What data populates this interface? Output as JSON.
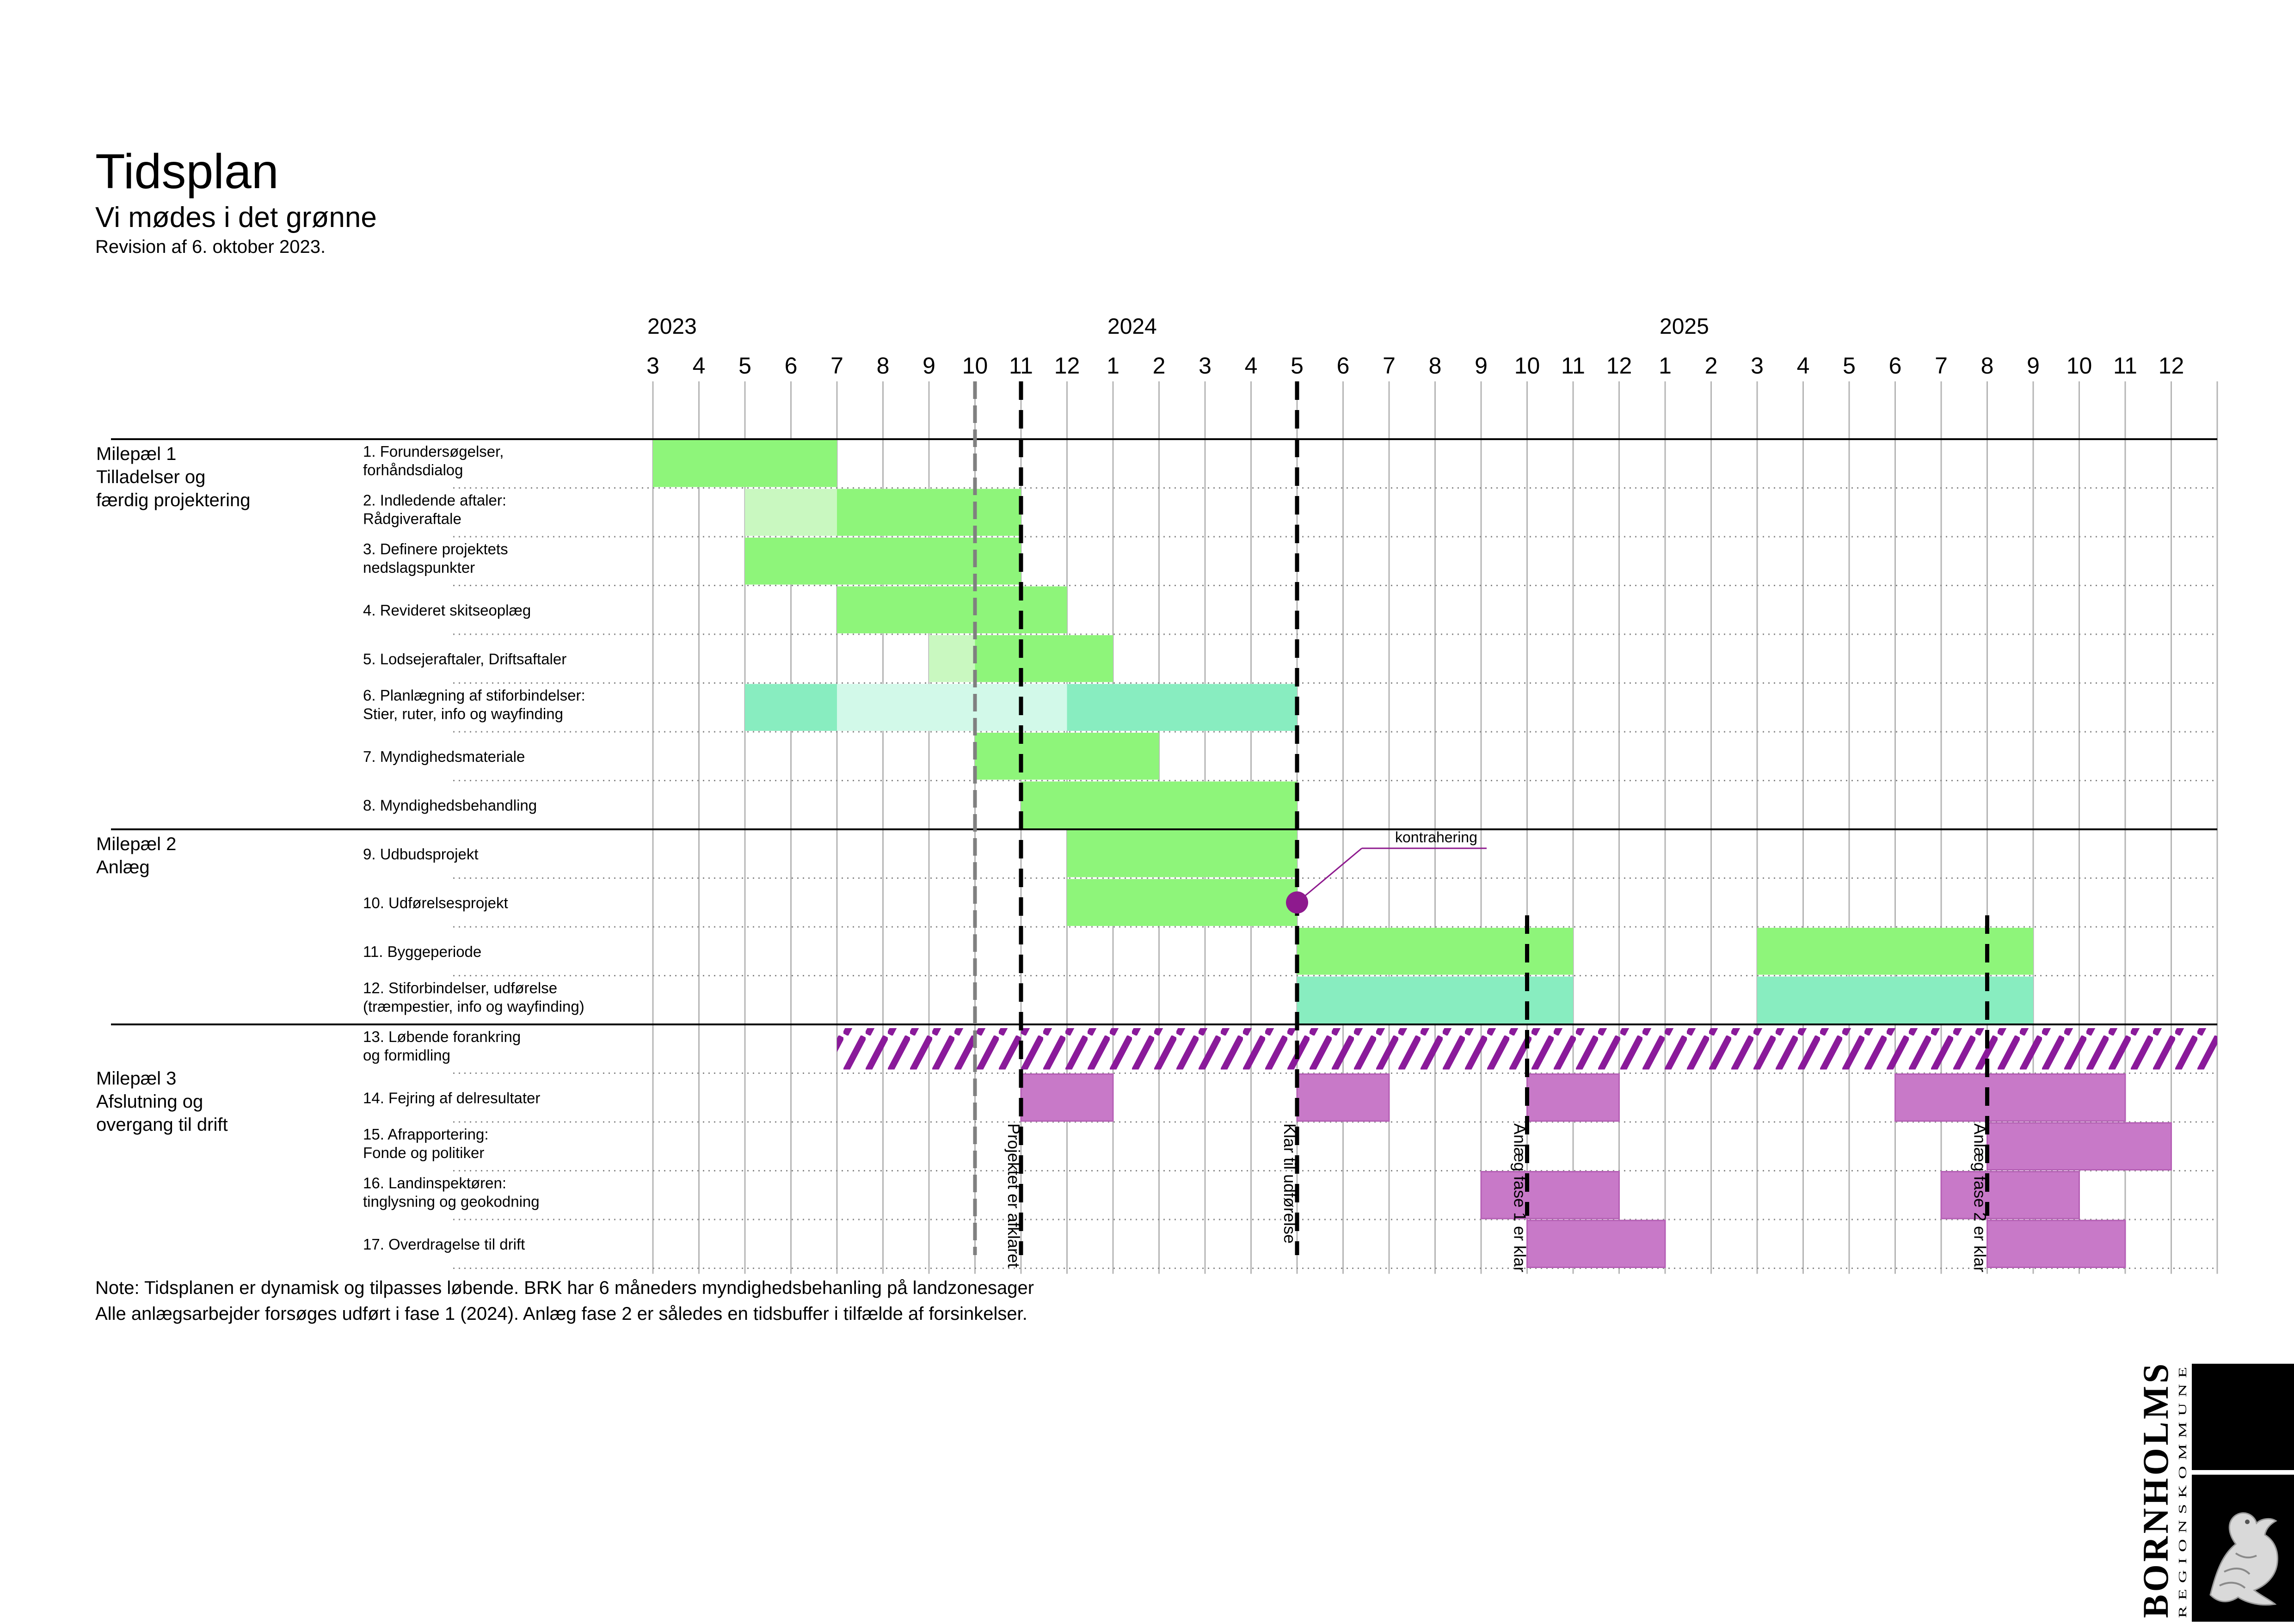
{
  "header": {
    "title": "Tidsplan",
    "subtitle": "Vi mødes i det grønne",
    "revision": "Revision af 6. oktober 2023."
  },
  "note": {
    "line1": "Note: Tidsplanen er dynamisk og tilpasses løbende. BRK har 6 måneders myndighedsbehanling på landzonesager",
    "line2": "Alle anlægsarbejder forsøges udført i fase 1 (2024). Anlæg fase 2 er således en tidsbuffer i tilfælde af forsinkelser."
  },
  "logo": {
    "name": "BORNHOLMS",
    "sub": "REGIONSKOMMUNE",
    "emblem": "dragon-icon"
  },
  "colors": {
    "green": "#8ef57a",
    "light_green": "#c9f8c0",
    "teal": "#88edc0",
    "light_teal": "#d2f9e9",
    "purple": "#c879c8",
    "purple_dark": "#8e1a8e",
    "hatch": "#8a1a9a"
  },
  "chart_data": {
    "type": "gantt",
    "months": [
      {
        "year": 2023,
        "month": 3
      },
      {
        "year": 2023,
        "month": 4
      },
      {
        "year": 2023,
        "month": 5
      },
      {
        "year": 2023,
        "month": 6
      },
      {
        "year": 2023,
        "month": 7
      },
      {
        "year": 2023,
        "month": 8
      },
      {
        "year": 2023,
        "month": 9
      },
      {
        "year": 2023,
        "month": 10
      },
      {
        "year": 2023,
        "month": 11
      },
      {
        "year": 2023,
        "month": 12
      },
      {
        "year": 2024,
        "month": 1
      },
      {
        "year": 2024,
        "month": 2
      },
      {
        "year": 2024,
        "month": 3
      },
      {
        "year": 2024,
        "month": 4
      },
      {
        "year": 2024,
        "month": 5
      },
      {
        "year": 2024,
        "month": 6
      },
      {
        "year": 2024,
        "month": 7
      },
      {
        "year": 2024,
        "month": 8
      },
      {
        "year": 2024,
        "month": 9
      },
      {
        "year": 2024,
        "month": 10
      },
      {
        "year": 2024,
        "month": 11
      },
      {
        "year": 2024,
        "month": 12
      },
      {
        "year": 2025,
        "month": 1
      },
      {
        "year": 2025,
        "month": 2
      },
      {
        "year": 2025,
        "month": 3
      },
      {
        "year": 2025,
        "month": 4
      },
      {
        "year": 2025,
        "month": 5
      },
      {
        "year": 2025,
        "month": 6
      },
      {
        "year": 2025,
        "month": 7
      },
      {
        "year": 2025,
        "month": 8
      },
      {
        "year": 2025,
        "month": 9
      },
      {
        "year": 2025,
        "month": 10
      },
      {
        "year": 2025,
        "month": 11
      },
      {
        "year": 2025,
        "month": 12
      }
    ],
    "years": [
      {
        "label": "2023",
        "start": "2023-03"
      },
      {
        "label": "2024",
        "start": "2024-01"
      },
      {
        "label": "2025",
        "start": "2025-01"
      }
    ],
    "milestones": [
      {
        "lines": [
          "Milepæl 1",
          "Tilladelser og",
          "færdig projektering"
        ],
        "first_row": 0
      },
      {
        "lines": [
          "Milepæl 2",
          "Anlæg"
        ],
        "first_row": 8
      },
      {
        "lines": [
          "Milepæl 3",
          "Afslutning og",
          "overgang til drift"
        ],
        "first_row": 12
      }
    ],
    "tasks": [
      {
        "lines": [
          "1.  Forundersøgelser,",
          "     forhåndsdialog"
        ],
        "bars": [
          {
            "start": "2023-03",
            "end": "2023-06",
            "color": "green"
          }
        ]
      },
      {
        "lines": [
          "2.  Indledende aftaler:",
          "     Rådgiveraftale"
        ],
        "bars": [
          {
            "start": "2023-05",
            "end": "2023-06",
            "color": "light_green"
          },
          {
            "start": "2023-07",
            "end": "2023-10",
            "color": "green"
          }
        ]
      },
      {
        "lines": [
          "3.  Definere projektets",
          "     nedslagspunkter"
        ],
        "bars": [
          {
            "start": "2023-05",
            "end": "2023-10",
            "color": "green"
          }
        ]
      },
      {
        "lines": [
          "4. Revideret skitseoplæg"
        ],
        "bars": [
          {
            "start": "2023-07",
            "end": "2023-11",
            "color": "green"
          }
        ]
      },
      {
        "lines": [
          "5.  Lodsejeraftaler, Driftsaftaler"
        ],
        "bars": [
          {
            "start": "2023-09",
            "end": "2023-10",
            "color": "light_green"
          },
          {
            "start": "2023-10",
            "end": "2023-12",
            "color": "green"
          }
        ]
      },
      {
        "lines": [
          "6.  Planlægning af stiforbindelser:",
          "     Stier, ruter, info og wayfinding"
        ],
        "bars": [
          {
            "start": "2023-05",
            "end": "2023-07",
            "color": "teal"
          },
          {
            "start": "2023-07",
            "end": "2023-12",
            "color": "light_teal"
          },
          {
            "start": "2023-12",
            "end": "2024-04",
            "color": "teal"
          }
        ]
      },
      {
        "lines": [
          "7.  Myndighedsmateriale"
        ],
        "bars": [
          {
            "start": "2023-10",
            "end": "2024-01",
            "color": "green"
          }
        ]
      },
      {
        "lines": [
          "8. Myndighedsbehandling"
        ],
        "bars": [
          {
            "start": "2023-11",
            "end": "2024-04",
            "color": "green"
          }
        ]
      },
      {
        "lines": [
          "9.  Udbudsprojekt"
        ],
        "bars": [
          {
            "start": "2023-12",
            "end": "2024-04",
            "color": "green"
          }
        ]
      },
      {
        "lines": [
          "10.  Udførelsesprojekt"
        ],
        "bars": [
          {
            "start": "2023-12",
            "end": "2024-04",
            "color": "green"
          }
        ]
      },
      {
        "lines": [
          "11. Byggeperiode"
        ],
        "bars": [
          {
            "start": "2024-05",
            "end": "2024-10",
            "color": "green"
          },
          {
            "start": "2025-03",
            "end": "2025-08",
            "color": "green"
          }
        ]
      },
      {
        "lines": [
          "12. Stiforbindelser, udførelse",
          "(træmpestier, info og wayfinding)"
        ],
        "bars": [
          {
            "start": "2024-05",
            "end": "2024-10",
            "color": "teal"
          },
          {
            "start": "2025-03",
            "end": "2025-08",
            "color": "teal"
          }
        ]
      },
      {
        "lines": [
          "13. Løbende forankring",
          "og formidling"
        ],
        "bars": [
          {
            "start": "2023-07",
            "end": "2025-12",
            "color": "hatch"
          }
        ]
      },
      {
        "lines": [
          "14. Fejring af delresultater"
        ],
        "bars": [
          {
            "start": "2023-11",
            "end": "2023-12",
            "color": "purple"
          },
          {
            "start": "2024-05",
            "end": "2024-06",
            "color": "purple"
          },
          {
            "start": "2024-10",
            "end": "2024-11",
            "color": "purple"
          },
          {
            "start": "2025-06",
            "end": "2025-10",
            "color": "purple"
          }
        ]
      },
      {
        "lines": [
          "15. Afrapportering:",
          "       Fonde og politiker"
        ],
        "bars": [
          {
            "start": "2025-08",
            "end": "2025-11",
            "color": "purple"
          }
        ]
      },
      {
        "lines": [
          "16. Landinspektøren:",
          "       tinglysning og geokodning"
        ],
        "bars": [
          {
            "start": "2024-09",
            "end": "2024-11",
            "color": "purple"
          },
          {
            "start": "2025-07",
            "end": "2025-09",
            "color": "purple"
          }
        ]
      },
      {
        "lines": [
          "17. Overdragelse til drift"
        ],
        "bars": [
          {
            "start": "2024-10",
            "end": "2024-12",
            "color": "purple"
          },
          {
            "start": "2025-08",
            "end": "2025-10",
            "color": "purple"
          }
        ]
      }
    ],
    "markers": [
      {
        "at": "2023-10",
        "style": "grey-dashed",
        "label": ""
      },
      {
        "at": "2023-11",
        "style": "black-dashed",
        "label": "Projektet er afklaret"
      },
      {
        "at": "2024-05",
        "style": "black-dashed",
        "label": "Klar til udførelse"
      },
      {
        "at": "2024-10",
        "style": "black-dashed-short",
        "label": "Anlæg fase 1 er klar"
      },
      {
        "at": "2025-08",
        "style": "black-dashed-short",
        "label": "Anlæg fase 2 er klar"
      }
    ],
    "event": {
      "row": 9,
      "at": "2024-05",
      "label": "kontrahering"
    }
  }
}
